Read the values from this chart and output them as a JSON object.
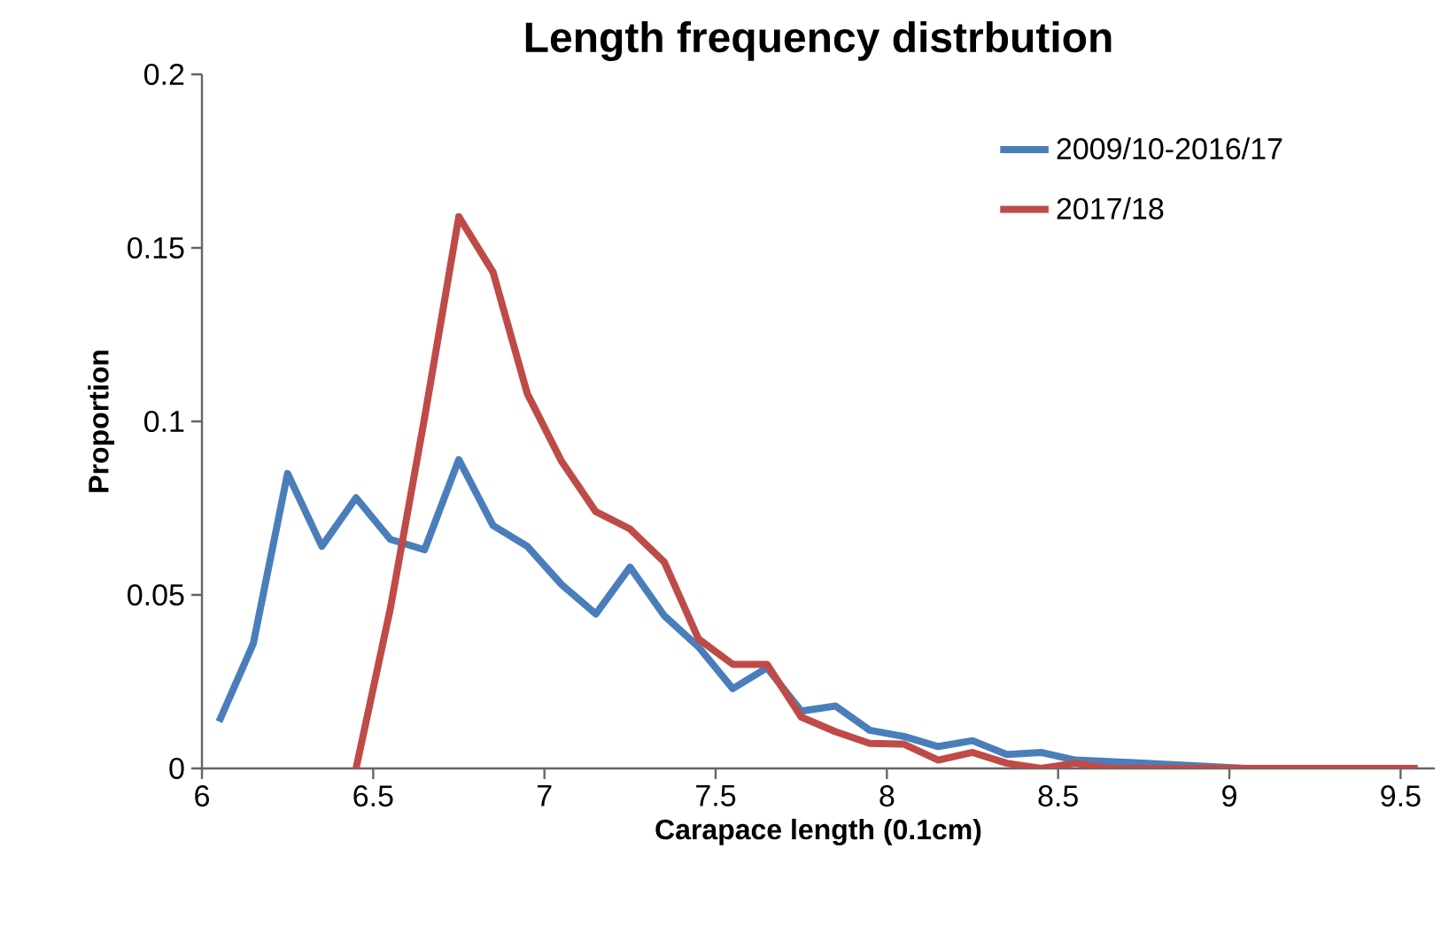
{
  "chart_data": {
    "type": "line",
    "title": "Length frequency distrbution",
    "xlabel": "Carapace length (0.1cm)",
    "ylabel": "Proportion",
    "x": [
      6.05,
      6.15,
      6.25,
      6.35,
      6.45,
      6.55,
      6.65,
      6.75,
      6.85,
      6.95,
      7.05,
      7.15,
      7.25,
      7.35,
      7.45,
      7.55,
      7.65,
      7.75,
      7.85,
      7.95,
      8.05,
      8.15,
      8.25,
      8.35,
      8.45,
      8.55,
      8.65,
      8.75,
      8.85,
      8.95,
      9.05,
      9.15,
      9.25,
      9.35,
      9.45,
      9.55
    ],
    "series": [
      {
        "name": "2009/10-2016/17",
        "color": "#4a7ebb",
        "values": [
          0.0135,
          0.036,
          0.085,
          0.064,
          0.078,
          0.066,
          0.063,
          0.089,
          0.07,
          0.064,
          0.053,
          0.0445,
          0.058,
          0.044,
          0.035,
          0.023,
          0.029,
          0.0165,
          0.018,
          0.011,
          0.0092,
          0.0063,
          0.008,
          0.004,
          0.0046,
          0.0024,
          0.002,
          0.0015,
          0.001,
          0.0005,
          0,
          0,
          null,
          null,
          null,
          null
        ]
      },
      {
        "name": "2017/18",
        "color": "#be4b48",
        "values": [
          null,
          null,
          null,
          null,
          0,
          0.046,
          0.101,
          0.159,
          0.143,
          0.108,
          0.0885,
          0.074,
          0.069,
          0.0595,
          0.0373,
          0.03,
          0.03,
          0.0148,
          0.0106,
          0.0072,
          0.007,
          0.0024,
          0.0046,
          0.0015,
          0,
          0.0015,
          0,
          0,
          0,
          0,
          0,
          0,
          0,
          0,
          0,
          0
        ]
      }
    ],
    "xlim": [
      6,
      9.6
    ],
    "ylim": [
      0,
      0.2
    ],
    "xticks": [
      6,
      6.5,
      7,
      7.5,
      8,
      8.5,
      9,
      9.5
    ],
    "yticks": [
      0,
      0.05,
      0.1,
      0.15,
      0.2
    ],
    "legend": "top right"
  }
}
